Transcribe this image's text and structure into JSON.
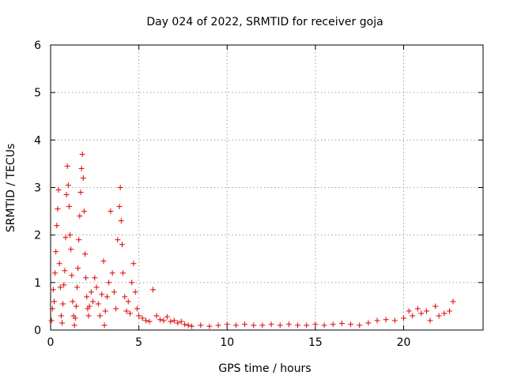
{
  "chart_data": {
    "type": "scatter",
    "title": "Day 024 of 2022, SRMTID for receiver goja",
    "xlabel": "GPS time / hours",
    "ylabel": "SRMTID / TECUs",
    "xlim": [
      0,
      24.5
    ],
    "ylim": [
      0,
      6
    ],
    "xticks": [
      0,
      5,
      10,
      15,
      20
    ],
    "xtick_labels": [
      "0",
      "5",
      "10",
      "15",
      "20"
    ],
    "yticks": [
      0,
      1,
      2,
      3,
      4,
      5,
      6
    ],
    "ytick_labels": [
      "0",
      "1",
      "2",
      "3",
      "4",
      "5",
      "6"
    ],
    "grid": true,
    "marker": "+",
    "color": "#e00000",
    "series": [
      {
        "name": "SRMTID",
        "points": [
          [
            0.05,
            0.2
          ],
          [
            0.1,
            0.45
          ],
          [
            0.15,
            0.85
          ],
          [
            0.2,
            0.6
          ],
          [
            0.25,
            1.2
          ],
          [
            0.3,
            1.65
          ],
          [
            0.35,
            2.2
          ],
          [
            0.4,
            2.55
          ],
          [
            0.45,
            2.95
          ],
          [
            0.5,
            1.4
          ],
          [
            0.55,
            0.9
          ],
          [
            0.6,
            0.3
          ],
          [
            0.65,
            0.15
          ],
          [
            0.7,
            0.55
          ],
          [
            0.75,
            0.95
          ],
          [
            0.8,
            1.25
          ],
          [
            0.85,
            1.95
          ],
          [
            0.9,
            2.85
          ],
          [
            0.95,
            3.45
          ],
          [
            1.0,
            3.05
          ],
          [
            1.05,
            2.6
          ],
          [
            1.1,
            2.0
          ],
          [
            1.15,
            1.7
          ],
          [
            1.2,
            1.15
          ],
          [
            1.25,
            0.6
          ],
          [
            1.3,
            0.3
          ],
          [
            1.35,
            0.1
          ],
          [
            1.4,
            0.25
          ],
          [
            1.45,
            0.5
          ],
          [
            1.5,
            0.9
          ],
          [
            1.55,
            1.3
          ],
          [
            1.6,
            1.9
          ],
          [
            1.65,
            2.4
          ],
          [
            1.7,
            2.9
          ],
          [
            1.75,
            3.4
          ],
          [
            1.8,
            3.7
          ],
          [
            1.85,
            3.2
          ],
          [
            1.9,
            2.5
          ],
          [
            1.95,
            1.6
          ],
          [
            2.0,
            1.1
          ],
          [
            2.05,
            0.7
          ],
          [
            2.1,
            0.45
          ],
          [
            2.15,
            0.3
          ],
          [
            2.2,
            0.5
          ],
          [
            2.3,
            0.8
          ],
          [
            2.4,
            0.6
          ],
          [
            2.5,
            1.1
          ],
          [
            2.6,
            0.9
          ],
          [
            2.7,
            0.55
          ],
          [
            2.8,
            0.3
          ],
          [
            2.9,
            0.75
          ],
          [
            3.0,
            1.45
          ],
          [
            3.05,
            0.1
          ],
          [
            3.1,
            0.4
          ],
          [
            3.2,
            0.7
          ],
          [
            3.3,
            1.0
          ],
          [
            3.4,
            2.5
          ],
          [
            3.5,
            1.2
          ],
          [
            3.6,
            0.8
          ],
          [
            3.7,
            0.45
          ],
          [
            3.8,
            1.9
          ],
          [
            3.9,
            2.6
          ],
          [
            3.95,
            3.0
          ],
          [
            4.0,
            2.3
          ],
          [
            4.05,
            1.8
          ],
          [
            4.1,
            1.2
          ],
          [
            4.2,
            0.7
          ],
          [
            4.3,
            0.4
          ],
          [
            4.4,
            0.6
          ],
          [
            4.5,
            0.35
          ],
          [
            4.6,
            1.0
          ],
          [
            4.7,
            1.4
          ],
          [
            4.8,
            0.8
          ],
          [
            4.9,
            0.45
          ],
          [
            5.0,
            0.3
          ],
          [
            5.2,
            0.25
          ],
          [
            5.4,
            0.2
          ],
          [
            5.6,
            0.18
          ],
          [
            5.8,
            0.85
          ],
          [
            6.0,
            0.3
          ],
          [
            6.2,
            0.22
          ],
          [
            6.4,
            0.2
          ],
          [
            6.6,
            0.28
          ],
          [
            6.8,
            0.18
          ],
          [
            7.0,
            0.2
          ],
          [
            7.2,
            0.15
          ],
          [
            7.4,
            0.18
          ],
          [
            7.6,
            0.12
          ],
          [
            7.8,
            0.1
          ],
          [
            8.0,
            0.08
          ],
          [
            8.5,
            0.1
          ],
          [
            9.0,
            0.08
          ],
          [
            9.5,
            0.1
          ],
          [
            10.0,
            0.12
          ],
          [
            10.5,
            0.1
          ],
          [
            11.0,
            0.12
          ],
          [
            11.5,
            0.1
          ],
          [
            12.0,
            0.1
          ],
          [
            12.5,
            0.12
          ],
          [
            13.0,
            0.1
          ],
          [
            13.5,
            0.12
          ],
          [
            14.0,
            0.1
          ],
          [
            14.5,
            0.1
          ],
          [
            15.0,
            0.12
          ],
          [
            15.5,
            0.1
          ],
          [
            16.0,
            0.12
          ],
          [
            16.5,
            0.14
          ],
          [
            17.0,
            0.12
          ],
          [
            17.5,
            0.1
          ],
          [
            18.0,
            0.15
          ],
          [
            18.5,
            0.2
          ],
          [
            19.0,
            0.22
          ],
          [
            19.5,
            0.2
          ],
          [
            20.0,
            0.25
          ],
          [
            20.3,
            0.4
          ],
          [
            20.5,
            0.3
          ],
          [
            20.8,
            0.45
          ],
          [
            21.0,
            0.35
          ],
          [
            21.3,
            0.4
          ],
          [
            21.5,
            0.2
          ],
          [
            21.8,
            0.5
          ],
          [
            22.0,
            0.3
          ],
          [
            22.3,
            0.35
          ],
          [
            22.6,
            0.4
          ],
          [
            22.8,
            0.6
          ]
        ]
      }
    ]
  }
}
